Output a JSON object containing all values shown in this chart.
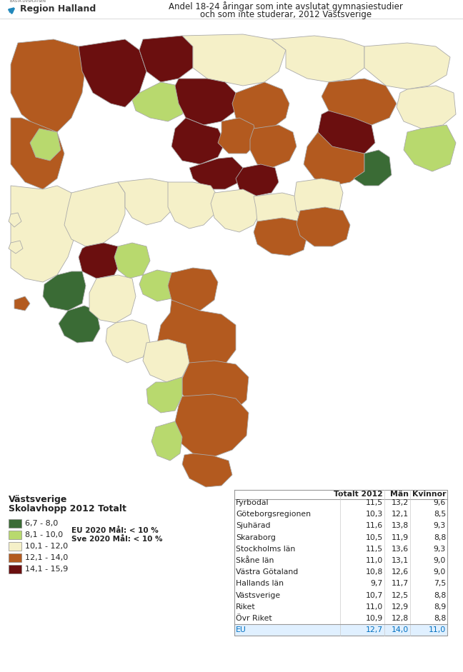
{
  "title_line1": "Andel 18-24 åringar som inte avslutat gymnasiestudier",
  "title_line2": "och som inte studerar, 2012 Västsverige",
  "legend_title1": "Västsverige",
  "legend_title2": "Skolavhopp 2012 Totalt",
  "legend_items": [
    {
      "label": "6,7 - 8,0",
      "color": "#3a6b35"
    },
    {
      "label": "8,1 - 10,0",
      "color": "#b8d96e"
    },
    {
      "label": "10,1 - 12,0",
      "color": "#f5f0c8"
    },
    {
      "label": "12,1 - 14,0",
      "color": "#b35a1f"
    },
    {
      "label": "14,1 - 15,9",
      "color": "#6b0f0f"
    }
  ],
  "eu_note1": "EU 2020 Mål: < 10 %",
  "eu_note2": "Sve 2020 Mål: < 10 %",
  "table_headers": [
    "",
    "Totalt 2012",
    "Män",
    "Kvinnor"
  ],
  "table_rows": [
    [
      "Fyrbodal",
      "11,5",
      "13,2",
      "9,6"
    ],
    [
      "Göteborgsregionen",
      "10,3",
      "12,1",
      "8,5"
    ],
    [
      "Sjuhärad",
      "11,6",
      "13,8",
      "9,3"
    ],
    [
      "Skaraborg",
      "10,5",
      "11,9",
      "8,8"
    ],
    [
      "Stockholms län",
      "11,5",
      "13,6",
      "9,3"
    ],
    [
      "Skåne län",
      "11,0",
      "13,1",
      "9,0"
    ],
    [
      "Västra Götaland",
      "10,8",
      "12,6",
      "9,0"
    ],
    [
      "Hallands län",
      "9,7",
      "11,7",
      "7,5"
    ],
    [
      "Västsverige",
      "10,7",
      "12,5",
      "8,8"
    ],
    [
      "Riket",
      "11,0",
      "12,9",
      "8,9"
    ],
    [
      "Övr Riket",
      "10,9",
      "12,8",
      "8,8"
    ],
    [
      "EU",
      "12,7",
      "14,0",
      "11,0"
    ]
  ],
  "eu_row_color": "#0070c0",
  "bg_color": "#ffffff",
  "edge_color": "#aaaaaa",
  "colors": {
    "dark_green": "#3a6b35",
    "light_green": "#b8d96e",
    "pale_yellow": "#f5f0c8",
    "brown": "#b35a1f",
    "dark_red": "#6b0f0f"
  }
}
